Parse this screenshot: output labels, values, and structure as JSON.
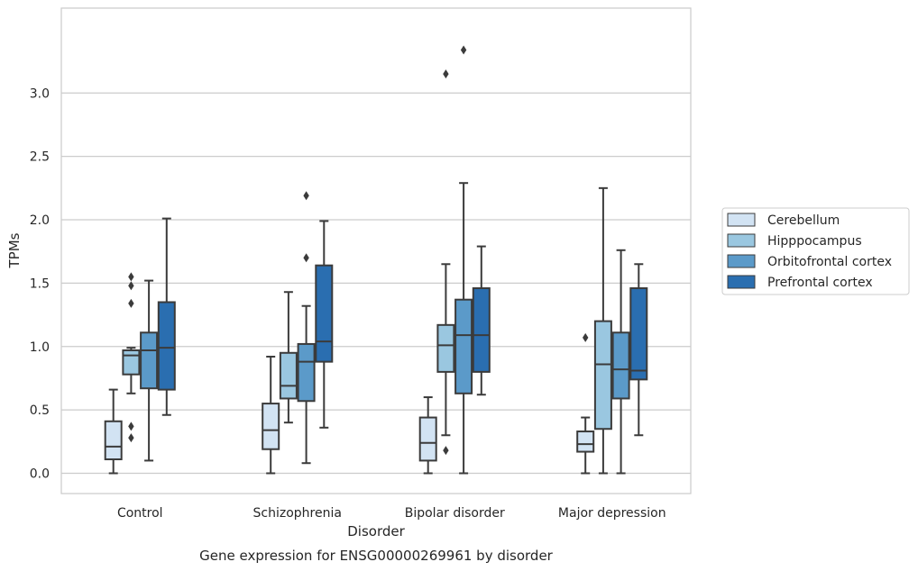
{
  "caption": "Gene expression for ENSG00000269961 by disorder",
  "chart_data": {
    "type": "box",
    "xlabel": "Disorder",
    "ylabel": "TPMs",
    "ylim": [
      -0.16,
      3.67
    ],
    "yticks": [
      0.0,
      0.5,
      1.0,
      1.5,
      2.0,
      2.5,
      3.0
    ],
    "ytick_labels": [
      "0.0",
      "0.5",
      "1.0",
      "1.5",
      "2.0",
      "2.5",
      "3.0"
    ],
    "grid": "horizontal",
    "legend_position": "right",
    "categories": [
      "Control",
      "Schizophrenia",
      "Bipolar disorder",
      "Major depression"
    ],
    "series": [
      {
        "name": "Cerebellum",
        "color": "#d2e3f3",
        "boxes": [
          {
            "whislo": 0.0,
            "q1": 0.11,
            "med": 0.21,
            "q3": 0.41,
            "whishi": 0.66,
            "fliers": []
          },
          {
            "whislo": 0.0,
            "q1": 0.19,
            "med": 0.34,
            "q3": 0.55,
            "whishi": 0.92,
            "fliers": []
          },
          {
            "whislo": 0.0,
            "q1": 0.1,
            "med": 0.24,
            "q3": 0.44,
            "whishi": 0.6,
            "fliers": []
          },
          {
            "whislo": 0.0,
            "q1": 0.17,
            "med": 0.23,
            "q3": 0.33,
            "whishi": 0.44,
            "fliers": [
              1.07
            ]
          }
        ]
      },
      {
        "name": "Hipppocampus",
        "color": "#9ac7e0",
        "boxes": [
          {
            "whislo": 0.63,
            "q1": 0.78,
            "med": 0.93,
            "q3": 0.97,
            "whishi": 0.99,
            "fliers": [
              1.55,
              1.48,
              1.34,
              0.37,
              0.28
            ]
          },
          {
            "whislo": 0.4,
            "q1": 0.59,
            "med": 0.69,
            "q3": 0.95,
            "whishi": 1.43,
            "fliers": []
          },
          {
            "whislo": 0.3,
            "q1": 0.8,
            "med": 1.01,
            "q3": 1.17,
            "whishi": 1.65,
            "fliers": [
              3.15,
              0.18
            ]
          },
          {
            "whislo": 0.0,
            "q1": 0.35,
            "med": 0.86,
            "q3": 1.2,
            "whishi": 2.25,
            "fliers": []
          }
        ]
      },
      {
        "name": "Orbitofrontal cortex",
        "color": "#5b9ac9",
        "boxes": [
          {
            "whislo": 0.1,
            "q1": 0.67,
            "med": 0.97,
            "q3": 1.11,
            "whishi": 1.52,
            "fliers": []
          },
          {
            "whislo": 0.08,
            "q1": 0.57,
            "med": 0.88,
            "q3": 1.02,
            "whishi": 1.32,
            "fliers": [
              2.19,
              1.7
            ]
          },
          {
            "whislo": 0.0,
            "q1": 0.63,
            "med": 1.09,
            "q3": 1.37,
            "whishi": 2.29,
            "fliers": [
              3.34
            ]
          },
          {
            "whislo": 0.0,
            "q1": 0.59,
            "med": 0.82,
            "q3": 1.11,
            "whishi": 1.76,
            "fliers": []
          }
        ]
      },
      {
        "name": "Prefrontal cortex",
        "color": "#2a6eb0",
        "boxes": [
          {
            "whislo": 0.46,
            "q1": 0.66,
            "med": 0.99,
            "q3": 1.35,
            "whishi": 2.01,
            "fliers": []
          },
          {
            "whislo": 0.36,
            "q1": 0.88,
            "med": 1.04,
            "q3": 1.64,
            "whishi": 1.99,
            "fliers": []
          },
          {
            "whislo": 0.62,
            "q1": 0.8,
            "med": 1.09,
            "q3": 1.46,
            "whishi": 1.79,
            "fliers": []
          },
          {
            "whislo": 0.3,
            "q1": 0.74,
            "med": 0.81,
            "q3": 1.46,
            "whishi": 1.65,
            "fliers": []
          }
        ]
      }
    ]
  }
}
